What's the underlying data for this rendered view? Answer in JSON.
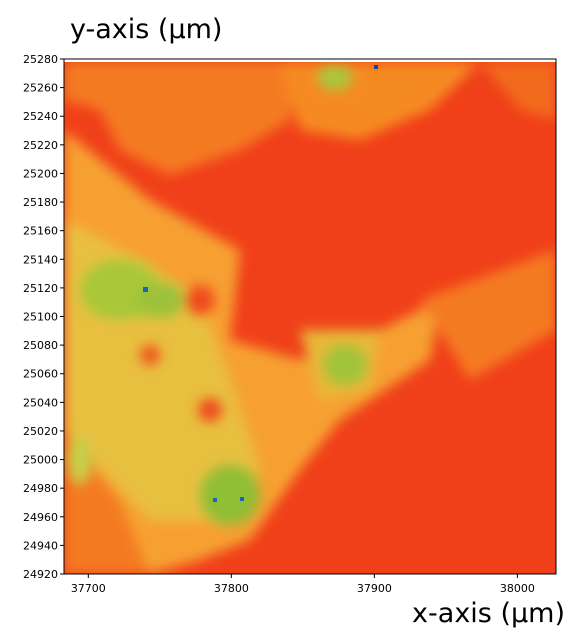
{
  "chart_data": {
    "type": "heatmap",
    "y_label": "y-axis (µm)",
    "x_label": "x-axis (µm)",
    "xlim": [
      37683,
      38027
    ],
    "xticks": [
      37700,
      37800,
      37900,
      38000
    ],
    "ylim": [
      24920,
      25280
    ],
    "yticks": [
      24920,
      24940,
      24960,
      24980,
      25000,
      25020,
      25040,
      25060,
      25080,
      25100,
      25120,
      25140,
      25160,
      25180,
      25200,
      25220,
      25240,
      25260,
      25280
    ]
  }
}
